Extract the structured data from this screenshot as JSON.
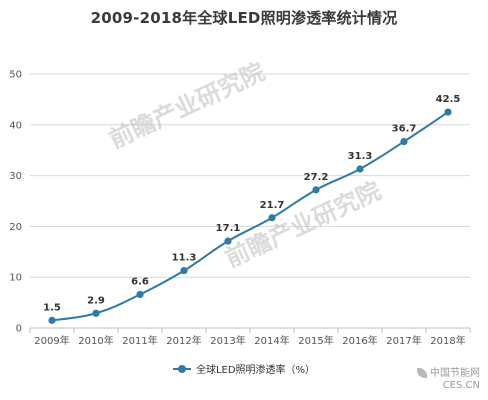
{
  "chart_data": {
    "type": "line",
    "title": "2009-2018年全球LED照明渗透率统计情况",
    "categories": [
      "2009年",
      "2010年",
      "2011年",
      "2012年",
      "2013年",
      "2014年",
      "2015年",
      "2016年",
      "2017年",
      "2018年"
    ],
    "series": [
      {
        "name": "全球LED照明渗透率（%）",
        "values": [
          1.5,
          2.9,
          6.6,
          11.3,
          17.1,
          21.7,
          27.2,
          31.3,
          36.7,
          42.5
        ]
      }
    ],
    "ylim": [
      0,
      50
    ],
    "yticks": [
      0,
      10,
      20,
      30,
      40,
      50
    ],
    "grid": true,
    "legend_position": "bottom-center",
    "colors": {
      "series": "#2f7ba6",
      "grid": "#d9d9d9",
      "axis": "#bfbfbf"
    }
  },
  "watermark": {
    "text": "前瞻产业研究院"
  },
  "logo": {
    "site": "中国节能网",
    "domain": "CES.CN"
  }
}
